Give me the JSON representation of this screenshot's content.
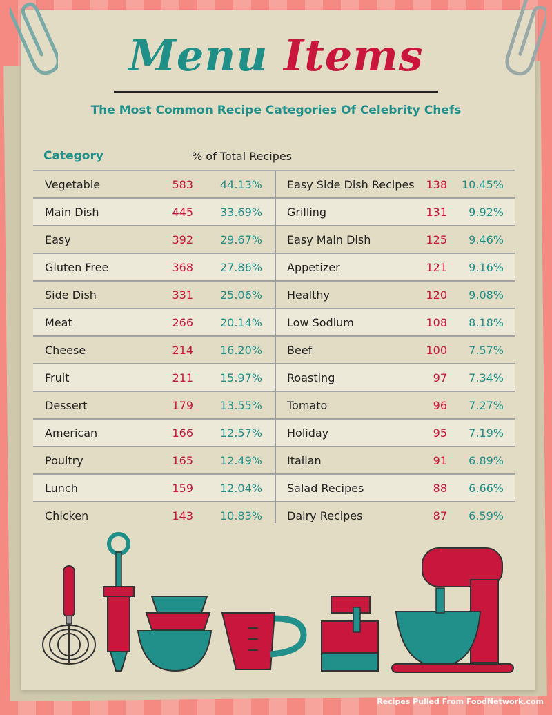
{
  "title": {
    "word1": "Menu",
    "word2": "Items"
  },
  "subtitle": "The Most Common Recipe Categories Of Celebrity Chefs",
  "headers": {
    "category": "Category",
    "percent": "% of Total Recipes"
  },
  "left_rows": [
    {
      "name": "Vegetable",
      "count": "583",
      "pct": "44.13%"
    },
    {
      "name": "Main Dish",
      "count": "445",
      "pct": "33.69%"
    },
    {
      "name": "Easy",
      "count": "392",
      "pct": "29.67%"
    },
    {
      "name": "Gluten Free",
      "count": "368",
      "pct": "27.86%"
    },
    {
      "name": "Side Dish",
      "count": "331",
      "pct": "25.06%"
    },
    {
      "name": "Meat",
      "count": "266",
      "pct": "20.14%"
    },
    {
      "name": "Cheese",
      "count": "214",
      "pct": "16.20%"
    },
    {
      "name": "Fruit",
      "count": "211",
      "pct": "15.97%"
    },
    {
      "name": "Dessert",
      "count": "179",
      "pct": "13.55%"
    },
    {
      "name": "American",
      "count": "166",
      "pct": "12.57%"
    },
    {
      "name": "Poultry",
      "count": "165",
      "pct": "12.49%"
    },
    {
      "name": "Lunch",
      "count": "159",
      "pct": "12.04%"
    },
    {
      "name": "Chicken",
      "count": "143",
      "pct": "10.83%"
    }
  ],
  "right_rows": [
    {
      "name": "Easy Side Dish Recipes",
      "count": "138",
      "pct": "10.45%"
    },
    {
      "name": "Grilling",
      "count": "131",
      "pct": "9.92%"
    },
    {
      "name": "Easy Main Dish",
      "count": "125",
      "pct": "9.46%"
    },
    {
      "name": "Appetizer",
      "count": "121",
      "pct": "9.16%"
    },
    {
      "name": "Healthy",
      "count": "120",
      "pct": "9.08%"
    },
    {
      "name": "Low Sodium",
      "count": "108",
      "pct": "8.18%"
    },
    {
      "name": "Beef",
      "count": "100",
      "pct": "7.57%"
    },
    {
      "name": "Roasting",
      "count": "97",
      "pct": "7.34%"
    },
    {
      "name": "Tomato",
      "count": "96",
      "pct": "7.27%"
    },
    {
      "name": "Holiday",
      "count": "95",
      "pct": "7.19%"
    },
    {
      "name": "Italian",
      "count": "91",
      "pct": "6.89%"
    },
    {
      "name": "Salad Recipes",
      "count": "88",
      "pct": "6.66%"
    },
    {
      "name": "Dairy Recipes",
      "count": "87",
      "pct": "6.59%"
    }
  ],
  "footer": "Recipes Pulled From FoodNetwork.com",
  "colors": {
    "teal": "#22908a",
    "red": "#c8163d",
    "paper": "#e2dcc4",
    "stripe_dark": "#f48a82",
    "stripe_light": "#f7a59c"
  },
  "icons": [
    "paperclip-icon",
    "whisk-icon",
    "baster-icon",
    "measuring-cups-icon",
    "measuring-jug-icon",
    "storage-jar-icon",
    "stand-mixer-icon"
  ]
}
